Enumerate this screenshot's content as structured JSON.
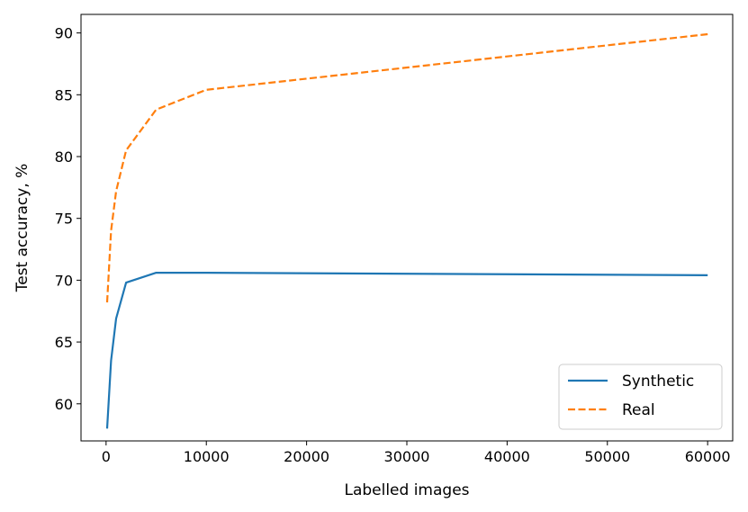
{
  "chart_data": {
    "type": "line",
    "xlabel": "Labelled images",
    "ylabel": "Test accuracy, %",
    "xlim": [
      -2500,
      62500
    ],
    "ylim": [
      57,
      91.5
    ],
    "xticks": [
      0,
      10000,
      20000,
      30000,
      40000,
      50000,
      60000
    ],
    "yticks": [
      60,
      65,
      70,
      75,
      80,
      85,
      90
    ],
    "legend_position": "lower-right",
    "series": [
      {
        "name": "Synthetic",
        "color": "#1f77b4",
        "dash": "solid",
        "x": [
          100,
          500,
          1000,
          2000,
          5000,
          10000,
          60000
        ],
        "y": [
          58.0,
          63.5,
          66.9,
          69.8,
          70.6,
          70.6,
          70.4
        ]
      },
      {
        "name": "Real",
        "color": "#ff7f0e",
        "dash": "dashed",
        "x": [
          100,
          500,
          1000,
          2000,
          5000,
          10000,
          60000
        ],
        "y": [
          68.2,
          74.0,
          77.2,
          80.5,
          83.8,
          85.4,
          89.9
        ]
      }
    ]
  }
}
